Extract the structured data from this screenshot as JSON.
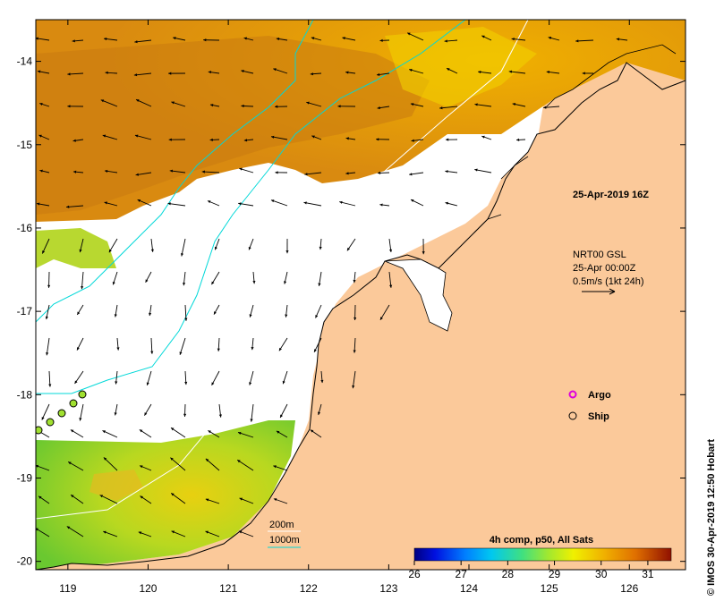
{
  "map": {
    "timestamp": "25-Apr-2019 16Z",
    "current_source": {
      "line1": "NRT00 GSL",
      "line2": "25-Apr 00:00Z",
      "line3": "0.5m/s (1kt 24h)"
    },
    "markers": [
      {
        "label": "Argo",
        "symbol": "argo-marker",
        "color": "#dd00dd"
      },
      {
        "label": "Ship",
        "symbol": "ship-marker",
        "color": "#000000"
      }
    ],
    "contours": [
      {
        "label": "200m",
        "color": "#ffffff"
      },
      {
        "label": "1000m",
        "color": "#00e5e5"
      }
    ],
    "colorbar": {
      "title": "4h comp, p50, All Sats",
      "ticks": [
        "26",
        "27",
        "28",
        "29",
        "30",
        "31"
      ],
      "range": [
        26,
        31.5
      ]
    },
    "credit": "© IMOS 30-Apr-2019 12:50 Hobart",
    "lat_ticks": [
      "-14",
      "-15",
      "-16",
      "-17",
      "-18",
      "-19",
      "-20"
    ],
    "lon_ticks": [
      "119",
      "120",
      "121",
      "122",
      "123",
      "124",
      "125",
      "126"
    ],
    "lat_range": [
      -20.1,
      -13.5
    ],
    "lon_range": [
      118.6,
      126.7
    ]
  }
}
